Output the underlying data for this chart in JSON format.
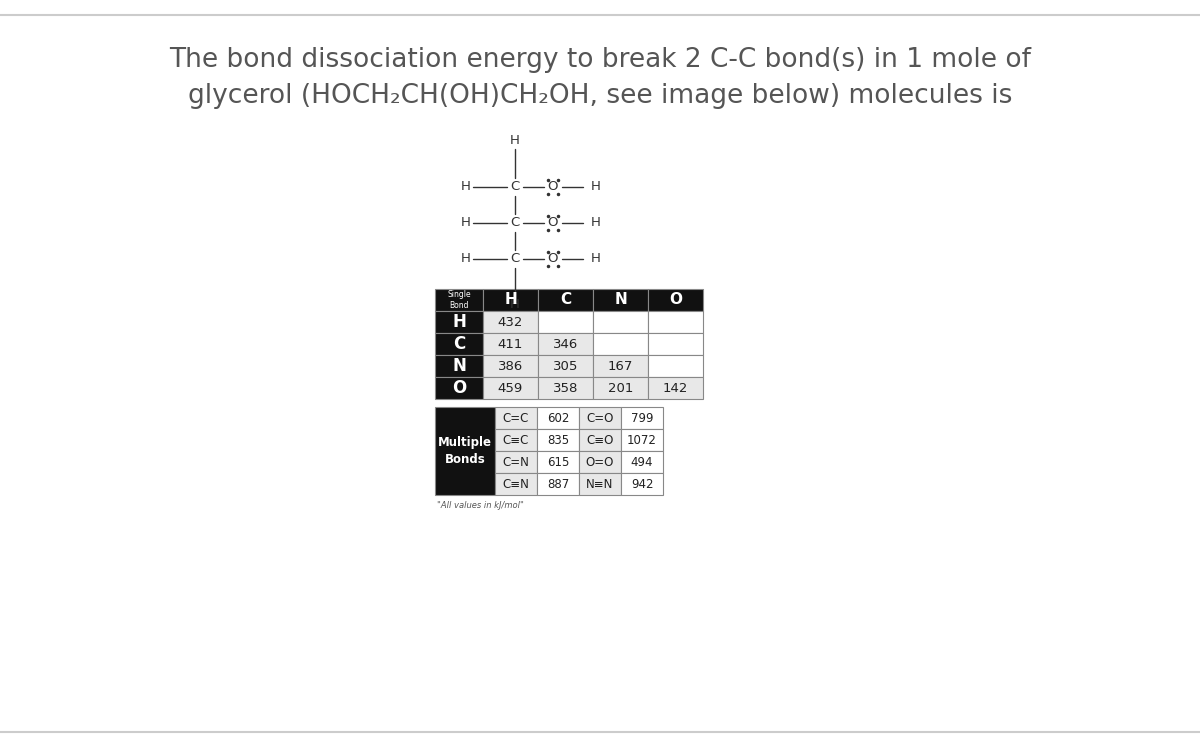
{
  "title_line1": "The bond dissociation energy to break 2 C-C bond(s) in 1 mole of",
  "title_line2": "glycerol (HOCH₂CH(OH)CH₂OH, see image below) molecules is",
  "title_fontsize": 19,
  "title_color": "#555555",
  "bg_color": "#ffffff",
  "table_header_bg": "#111111",
  "table_header_fg": "#ffffff",
  "table_cell_bg": "#ffffff",
  "table_cell_alt_bg": "#e8e8e8",
  "table_border_color": "#888888",
  "single_bond_header": "Single\nBond",
  "col_headers": [
    "H",
    "C",
    "N",
    "O"
  ],
  "row_labels": [
    "H",
    "C",
    "N",
    "O"
  ],
  "single_bond_data": [
    [
      432,
      null,
      null,
      null
    ],
    [
      411,
      346,
      null,
      null
    ],
    [
      386,
      305,
      167,
      null
    ],
    [
      459,
      358,
      201,
      142
    ]
  ],
  "multiple_bond_label": "Multiple\nBonds",
  "multiple_bond_rows": [
    [
      "C=C",
      602,
      "C=O",
      799
    ],
    [
      "C≡C",
      835,
      "C≡O",
      1072
    ],
    [
      "C=N",
      615,
      "O=O",
      494
    ],
    [
      "C≡N",
      887,
      "N≡N",
      942
    ]
  ],
  "footnote": "\"All values in kJ/mol\"",
  "atom_color": "#333333",
  "bond_color": "#333333"
}
